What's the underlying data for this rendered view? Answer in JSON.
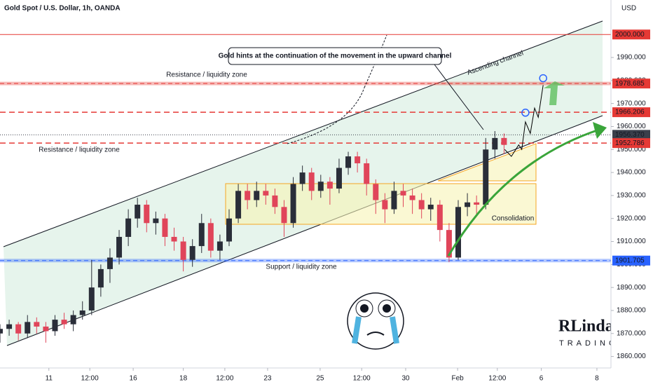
{
  "chart_data": {
    "type": "candlestick",
    "title": "Gold Spot / U.S. Dollar, 1h, OANDA",
    "currency": "USD",
    "up_color": "#2a2e39",
    "down_color": "#e0455a",
    "xlim": [
      0,
      100
    ],
    "ylim": [
      1855,
      2015
    ],
    "xticks": [
      {
        "value": 8,
        "label": "11"
      },
      {
        "value": 14.7,
        "label": "12:00"
      },
      {
        "value": 21.8,
        "label": "16"
      },
      {
        "value": 30,
        "label": "18"
      },
      {
        "value": 36.8,
        "label": "12:00"
      },
      {
        "value": 43.8,
        "label": "23"
      },
      {
        "value": 52.4,
        "label": "25"
      },
      {
        "value": 59.2,
        "label": "12:00"
      },
      {
        "value": 66.4,
        "label": "30"
      },
      {
        "value": 74.9,
        "label": "Feb"
      },
      {
        "value": 81.4,
        "label": "12:00"
      },
      {
        "value": 88.6,
        "label": "6"
      },
      {
        "value": 97.7,
        "label": "8"
      }
    ],
    "yticks": [
      {
        "value": 1860,
        "label": "1860.000"
      },
      {
        "value": 1870,
        "label": "1870.000"
      },
      {
        "value": 1880,
        "label": "1880.000"
      },
      {
        "value": 1890,
        "label": "1890.000"
      },
      {
        "value": 1900,
        "label": "1900.000"
      },
      {
        "value": 1910,
        "label": "1910.000"
      },
      {
        "value": 1920,
        "label": "1920.000"
      },
      {
        "value": 1930,
        "label": "1930.000"
      },
      {
        "value": 1940,
        "label": "1940.000"
      },
      {
        "value": 1950,
        "label": "1950.000"
      },
      {
        "value": 1960,
        "label": "1960.000"
      },
      {
        "value": 1970,
        "label": "1970.000"
      },
      {
        "value": 1980,
        "label": "1980.000"
      },
      {
        "value": 1990,
        "label": "1990.000"
      }
    ],
    "x": [
      0,
      1.5,
      3,
      4.5,
      6,
      7.5,
      9,
      10.5,
      12,
      13.5,
      15,
      16.5,
      18,
      19.5,
      21,
      22.5,
      24,
      25.5,
      27,
      28.5,
      30,
      31.5,
      33,
      34.5,
      36,
      37.5,
      39,
      40.5,
      42,
      43.5,
      45,
      46.5,
      48,
      49.5,
      51,
      52.5,
      54,
      55.5,
      57,
      58.5,
      60,
      61.5,
      63,
      64.5,
      66,
      67.5,
      69,
      70.5,
      72,
      73.5,
      75,
      76.5,
      78,
      79.5,
      81,
      82.5
    ],
    "ohlc": [
      [
        1870,
        1874,
        1866,
        1872
      ],
      [
        1872,
        1876,
        1869,
        1874
      ],
      [
        1874,
        1875,
        1867,
        1870
      ],
      [
        1870,
        1878,
        1868,
        1875
      ],
      [
        1875,
        1877,
        1870,
        1873
      ],
      [
        1873,
        1875,
        1866,
        1871
      ],
      [
        1871,
        1878,
        1869,
        1876
      ],
      [
        1876,
        1879,
        1872,
        1874
      ],
      [
        1874,
        1880,
        1871,
        1878
      ],
      [
        1878,
        1884,
        1876,
        1880
      ],
      [
        1880,
        1902,
        1878,
        1890
      ],
      [
        1890,
        1900,
        1886,
        1898
      ],
      [
        1898,
        1907,
        1892,
        1903
      ],
      [
        1903,
        1915,
        1900,
        1912
      ],
      [
        1912,
        1924,
        1908,
        1920
      ],
      [
        1920,
        1929,
        1916,
        1926
      ],
      [
        1926,
        1928,
        1914,
        1918
      ],
      [
        1918,
        1923,
        1913,
        1920
      ],
      [
        1920,
        1922,
        1908,
        1912
      ],
      [
        1912,
        1916,
        1906,
        1910
      ],
      [
        1910,
        1912,
        1897,
        1902
      ],
      [
        1902,
        1911,
        1899,
        1908
      ],
      [
        1908,
        1922,
        1905,
        1918
      ],
      [
        1918,
        1920,
        1903,
        1906
      ],
      [
        1906,
        1913,
        1902,
        1910
      ],
      [
        1910,
        1924,
        1908,
        1920
      ],
      [
        1920,
        1935,
        1918,
        1932
      ],
      [
        1932,
        1935,
        1924,
        1928
      ],
      [
        1928,
        1936,
        1925,
        1932
      ],
      [
        1932,
        1935,
        1926,
        1930
      ],
      [
        1930,
        1933,
        1922,
        1925
      ],
      [
        1925,
        1928,
        1912,
        1918
      ],
      [
        1918,
        1938,
        1916,
        1935
      ],
      [
        1935,
        1943,
        1932,
        1940
      ],
      [
        1940,
        1942,
        1928,
        1932
      ],
      [
        1932,
        1939,
        1929,
        1936
      ],
      [
        1936,
        1938,
        1926,
        1933
      ],
      [
        1933,
        1946,
        1931,
        1942
      ],
      [
        1942,
        1949,
        1939,
        1947
      ],
      [
        1947,
        1949,
        1940,
        1944
      ],
      [
        1944,
        1946,
        1930,
        1935
      ],
      [
        1935,
        1937,
        1922,
        1928
      ],
      [
        1928,
        1931,
        1918,
        1924
      ],
      [
        1924,
        1936,
        1922,
        1932
      ],
      [
        1932,
        1935,
        1925,
        1930
      ],
      [
        1930,
        1933,
        1922,
        1928
      ],
      [
        1928,
        1931,
        1920,
        1924
      ],
      [
        1924,
        1929,
        1919,
        1926
      ],
      [
        1926,
        1928,
        1910,
        1915
      ],
      [
        1915,
        1918,
        1901,
        1903
      ],
      [
        1903,
        1928,
        1902,
        1925
      ],
      [
        1925,
        1931,
        1921,
        1927
      ],
      [
        1927,
        1930,
        1922,
        1926
      ],
      [
        1926,
        1955,
        1924,
        1950
      ],
      [
        1950,
        1958,
        1946,
        1955
      ],
      [
        1955,
        1957,
        1948,
        1952
      ]
    ],
    "projection": {
      "color": "#000000",
      "x": [
        82.6,
        83.7,
        84.9,
        85.4,
        86,
        86.8,
        87.5,
        88.1,
        88.9
      ],
      "values": [
        1950,
        1947,
        1952,
        1950,
        1962,
        1957,
        1968,
        1964,
        1978
      ]
    },
    "targets": {
      "color": "#2962ff",
      "x": [
        86,
        88.9
      ],
      "values": [
        1966,
        1981
      ]
    },
    "levels": [
      {
        "value": 2000,
        "label": "2000.000",
        "color": "#e53935",
        "style": "solid"
      },
      {
        "value": 1978.685,
        "label": "1978.685",
        "color": "#e53935",
        "style": "band"
      },
      {
        "value": 1966.206,
        "label": "1966.206",
        "color": "#e53935",
        "style": "dashed"
      },
      {
        "value": 1956.37,
        "label": "1956.370",
        "color": "#3a3f4b",
        "style": "dotted"
      },
      {
        "value": 1952.786,
        "label": "1952.786",
        "color": "#e53935",
        "style": "dashed"
      },
      {
        "value": 1901.705,
        "label": "1901.705",
        "color": "#2962ff",
        "style": "band"
      }
    ],
    "annotations": {
      "callout": "Gold hints at the continuation of the movement in the upward channel",
      "resistance_top": "Resistance / liquidity zone",
      "resistance_mid": "Resistance / liquidity zone",
      "support": "Support / liquidity zone",
      "consolidation": "Consolidation",
      "channel": "Ascending channel"
    },
    "logo": {
      "name": "RLinda",
      "sub": "TRADING"
    }
  }
}
